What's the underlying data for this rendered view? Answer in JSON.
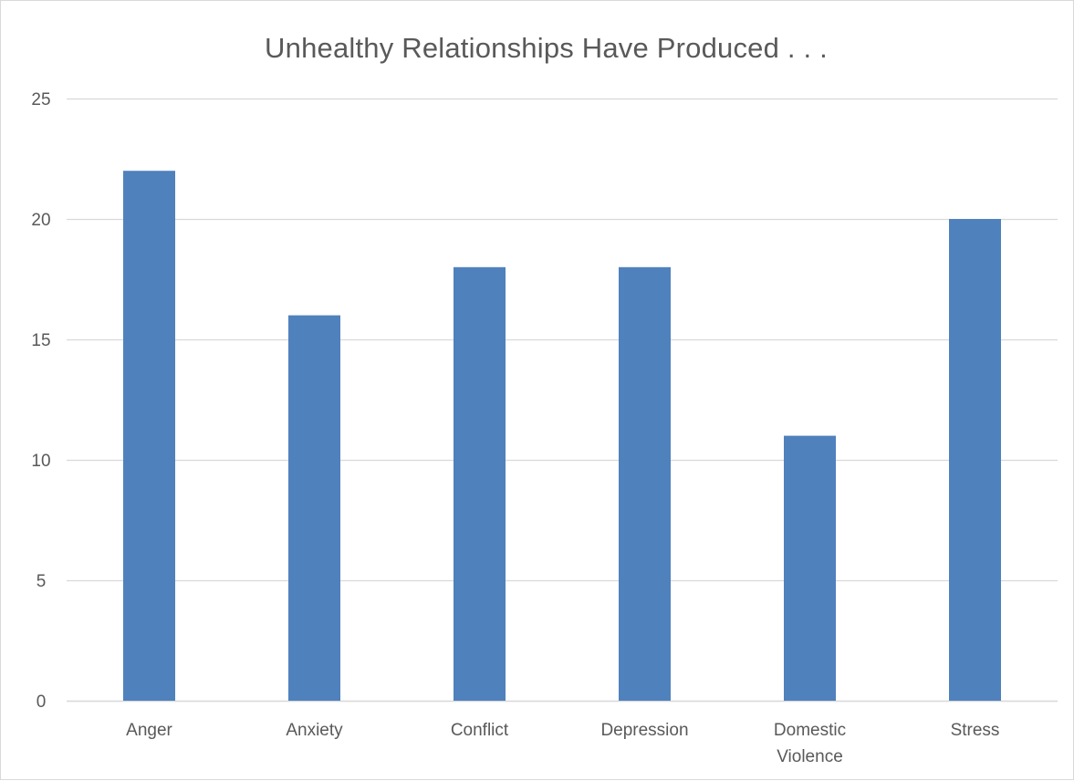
{
  "chart_data": {
    "type": "bar",
    "title": "Unhealthy Relationships Have Produced . . .",
    "xlabel": "",
    "ylabel": "",
    "categories": [
      "Anger",
      "Anxiety",
      "Conflict",
      "Depression",
      "Domestic Violence",
      "Stress"
    ],
    "category_lines": [
      [
        "Anger"
      ],
      [
        "Anxiety"
      ],
      [
        "Conflict"
      ],
      [
        "Depression"
      ],
      [
        "Domestic",
        "Violence"
      ],
      [
        "Stress"
      ]
    ],
    "series": [
      {
        "values": [
          22,
          16,
          18,
          18,
          11,
          20
        ]
      }
    ],
    "ylim": [
      0,
      25
    ],
    "yticks": [
      0,
      5,
      10,
      15,
      20,
      25
    ],
    "grid": true,
    "legend": "none",
    "bar_color": "#4f81bd",
    "grid_color": "#d9d9d9",
    "text_color": "#595959"
  }
}
